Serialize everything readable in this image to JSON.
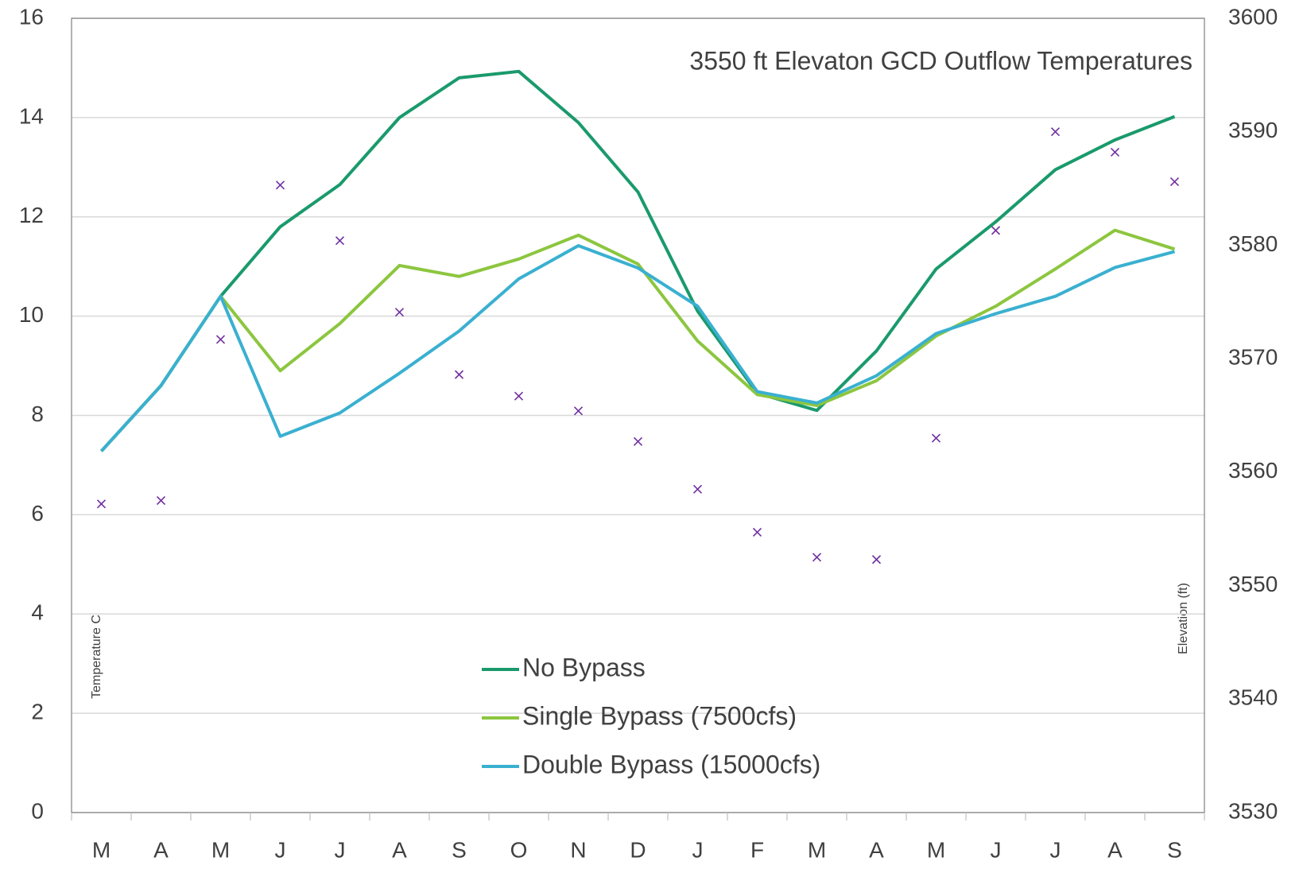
{
  "chart_data": {
    "type": "line",
    "title": "3550 ft Elevaton GCD Outflow Temperatures",
    "y_label": "Temperature C",
    "y2_label": "Elevation (ft)",
    "categories": [
      "M",
      "A",
      "M",
      "J",
      "J",
      "A",
      "S",
      "O",
      "N",
      "D",
      "J",
      "F",
      "M",
      "A",
      "M",
      "J",
      "J",
      "A",
      "S"
    ],
    "series": [
      {
        "name": "No Bypass",
        "color": "#1a9a6c",
        "values": [
          7.28,
          8.6,
          10.4,
          11.8,
          12.65,
          14.0,
          14.8,
          14.93,
          13.9,
          12.5,
          10.1,
          8.45,
          8.1,
          9.3,
          10.95,
          11.9,
          12.95,
          13.55,
          14.02
        ]
      },
      {
        "name": "Single Bypass (7500cfs)",
        "color": "#8cc63f",
        "values": [
          7.28,
          8.6,
          10.4,
          8.9,
          9.85,
          11.02,
          10.8,
          11.15,
          11.63,
          11.05,
          9.5,
          8.42,
          8.2,
          8.7,
          9.6,
          10.2,
          10.95,
          11.73,
          11.35
        ]
      },
      {
        "name": "Double Bypass (15000cfs)",
        "color": "#3ab0d0",
        "values": [
          7.28,
          8.6,
          10.4,
          7.58,
          8.05,
          8.85,
          9.7,
          10.75,
          11.42,
          10.97,
          10.2,
          8.48,
          8.25,
          8.8,
          9.65,
          10.05,
          10.4,
          10.98,
          11.3
        ]
      },
      {
        "type": "scatter",
        "marker": "x",
        "axis": "y2",
        "color": "#7030a0",
        "values": [
          3557.2,
          3557.5,
          3571.7,
          3585.3,
          3580.4,
          3574.1,
          3568.6,
          3566.7,
          3565.4,
          3562.7,
          3558.5,
          3554.7,
          3552.5,
          3552.3,
          3563.0,
          3581.3,
          3590.0,
          3588.2,
          3585.6
        ]
      }
    ],
    "ylim": [
      0,
      16
    ],
    "yticks": [
      0,
      2,
      4,
      6,
      8,
      10,
      12,
      14,
      16
    ],
    "y2lim": [
      3530,
      3600
    ],
    "y2ticks": [
      3530,
      3540,
      3550,
      3560,
      3570,
      3580,
      3590,
      3600
    ],
    "grid": true,
    "legend": "bottom"
  }
}
